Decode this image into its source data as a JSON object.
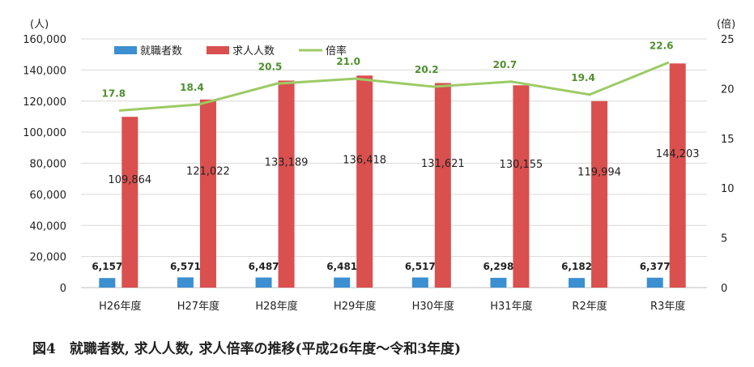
{
  "caption": "図4　就職者数, 求人人数, 求人倍率の推移(平成26年度～令和3年度)",
  "chart_data": {
    "type": "bar",
    "categories": [
      "H26年度",
      "H27年度",
      "H28年度",
      "H29年度",
      "H30年度",
      "H31年度",
      "R2年度",
      "R3年度"
    ],
    "series": [
      {
        "name": "就職者数",
        "kind": "bar",
        "axis": "left",
        "color": "#3c8fd0",
        "values": [
          6157,
          6571,
          6487,
          6481,
          6517,
          6298,
          6182,
          6377
        ],
        "labels": [
          "6,157",
          "6,571",
          "6,487",
          "6,481",
          "6,517",
          "6,298",
          "6,182",
          "6,377"
        ]
      },
      {
        "name": "求人人数",
        "kind": "bar",
        "axis": "left",
        "color": "#d9504e",
        "values": [
          109864,
          121022,
          133189,
          136418,
          131621,
          130155,
          119994,
          144203
        ],
        "labels": [
          "109,864",
          "121,022",
          "133,189",
          "136,418",
          "131,621",
          "130,155",
          "119,994",
          "144,203"
        ]
      },
      {
        "name": "倍率",
        "kind": "line",
        "axis": "right",
        "color": "#9ccb65",
        "values": [
          17.8,
          18.4,
          20.5,
          21.0,
          20.2,
          20.7,
          19.4,
          22.6
        ],
        "labels": [
          "17.8",
          "18.4",
          "20.5",
          "21.0",
          "20.2",
          "20.7",
          "19.4",
          "22.6"
        ]
      }
    ],
    "y_left": {
      "label": "(人)",
      "ylim": [
        0,
        160000
      ],
      "ticks": [
        "0",
        "20,000",
        "40,000",
        "60,000",
        "80,000",
        "100,000",
        "120,000",
        "140,000",
        "160,000"
      ]
    },
    "y_right": {
      "label": "(倍)",
      "ylim": [
        0,
        25
      ],
      "ticks": [
        "0",
        "5",
        "10",
        "15",
        "20",
        "25"
      ]
    },
    "grid": true,
    "legend": "top-left"
  }
}
